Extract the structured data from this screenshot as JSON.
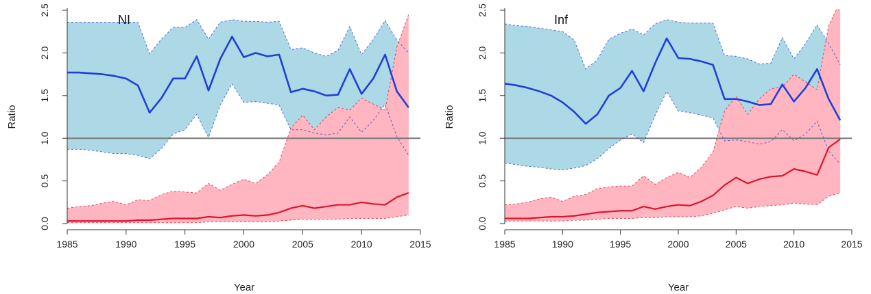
{
  "chart_data": [
    {
      "type": "line",
      "panel_label": "NI",
      "xlabel": "Year",
      "ylabel": "Ratio",
      "xlim": [
        1985,
        2015
      ],
      "ylim": [
        0,
        2.5
      ],
      "xticks": [
        1985,
        1990,
        1995,
        2000,
        2005,
        2010,
        2015
      ],
      "yticks": [
        0.0,
        0.5,
        1.0,
        1.5,
        2.0,
        2.5
      ],
      "ytick_labels": [
        "0.0",
        "0.5",
        "1.0",
        "1.5",
        "2.0",
        "2.5"
      ],
      "reference_line": 1.0,
      "x": [
        1985,
        1986,
        1987,
        1988,
        1989,
        1990,
        1991,
        1992,
        1993,
        1994,
        1995,
        1996,
        1997,
        1998,
        1999,
        2000,
        2001,
        2002,
        2003,
        2004,
        2005,
        2006,
        2007,
        2008,
        2009,
        2010,
        2011,
        2012,
        2013,
        2014
      ],
      "series": [
        {
          "color": "#1f3fd6",
          "band_color": "#add8e6",
          "values": [
            1.77,
            1.77,
            1.76,
            1.75,
            1.73,
            1.7,
            1.62,
            1.3,
            1.47,
            1.7,
            1.7,
            1.96,
            1.56,
            1.93,
            2.19,
            1.95,
            2.0,
            1.96,
            1.98,
            1.54,
            1.58,
            1.55,
            1.5,
            1.51,
            1.81,
            1.52,
            1.7,
            1.98,
            1.55,
            1.36
          ],
          "upper": [
            2.36,
            2.36,
            2.36,
            2.36,
            2.36,
            2.36,
            2.36,
            1.99,
            2.16,
            2.3,
            2.3,
            2.39,
            2.16,
            2.36,
            2.39,
            2.37,
            2.37,
            2.36,
            2.37,
            2.04,
            2.06,
            2.0,
            1.96,
            2.03,
            2.31,
            1.98,
            2.16,
            2.38,
            2.15,
            2.0
          ],
          "lower": [
            0.87,
            0.87,
            0.86,
            0.84,
            0.82,
            0.82,
            0.8,
            0.76,
            0.88,
            1.05,
            1.1,
            1.28,
            1.01,
            1.39,
            1.64,
            1.42,
            1.43,
            1.41,
            1.39,
            1.1,
            1.1,
            1.06,
            1.04,
            1.06,
            1.25,
            1.07,
            1.21,
            1.4,
            1.02,
            0.8
          ]
        },
        {
          "color": "#e0132a",
          "band_color": "#ffb6c1",
          "values": [
            0.03,
            0.03,
            0.03,
            0.03,
            0.03,
            0.03,
            0.04,
            0.04,
            0.05,
            0.06,
            0.06,
            0.06,
            0.08,
            0.07,
            0.09,
            0.1,
            0.09,
            0.1,
            0.13,
            0.18,
            0.21,
            0.18,
            0.2,
            0.22,
            0.22,
            0.25,
            0.23,
            0.22,
            0.31,
            0.36
          ],
          "upper": [
            0.18,
            0.2,
            0.21,
            0.24,
            0.26,
            0.22,
            0.28,
            0.27,
            0.34,
            0.38,
            0.37,
            0.36,
            0.47,
            0.39,
            0.46,
            0.52,
            0.47,
            0.57,
            0.72,
            1.12,
            1.27,
            1.1,
            1.25,
            1.36,
            1.33,
            1.47,
            1.4,
            1.33,
            2.07,
            2.45
          ],
          "lower": [
            0.01,
            0.01,
            0.01,
            0.01,
            0.01,
            0.01,
            0.01,
            0.01,
            0.01,
            0.01,
            0.01,
            0.01,
            0.02,
            0.02,
            0.02,
            0.02,
            0.02,
            0.02,
            0.03,
            0.04,
            0.05,
            0.05,
            0.05,
            0.05,
            0.06,
            0.06,
            0.06,
            0.06,
            0.08,
            0.1
          ]
        }
      ]
    },
    {
      "type": "line",
      "panel_label": "Inf",
      "xlabel": "Year",
      "ylabel": "Ratio",
      "xlim": [
        1985,
        2015
      ],
      "ylim": [
        0,
        2.5
      ],
      "xticks": [
        1985,
        1990,
        1995,
        2000,
        2005,
        2010,
        2015
      ],
      "yticks": [
        0.0,
        0.5,
        1.0,
        1.5,
        2.0,
        2.5
      ],
      "ytick_labels": [
        "0.0",
        "0.5",
        "1.0",
        "1.5",
        "2.0",
        "2.5"
      ],
      "reference_line": 1.0,
      "x": [
        1985,
        1986,
        1987,
        1988,
        1989,
        1990,
        1991,
        1992,
        1993,
        1994,
        1995,
        1996,
        1997,
        1998,
        1999,
        2000,
        2001,
        2002,
        2003,
        2004,
        2005,
        2006,
        2007,
        2008,
        2009,
        2010,
        2011,
        2012,
        2013,
        2014
      ],
      "series": [
        {
          "color": "#1f3fd6",
          "band_color": "#add8e6",
          "values": [
            1.64,
            1.62,
            1.59,
            1.55,
            1.5,
            1.42,
            1.31,
            1.17,
            1.28,
            1.5,
            1.59,
            1.79,
            1.55,
            1.88,
            2.17,
            1.94,
            1.93,
            1.9,
            1.86,
            1.46,
            1.46,
            1.43,
            1.39,
            1.4,
            1.63,
            1.43,
            1.59,
            1.81,
            1.46,
            1.21
          ],
          "upper": [
            2.34,
            2.32,
            2.31,
            2.29,
            2.27,
            2.25,
            2.15,
            1.81,
            1.92,
            2.16,
            2.23,
            2.28,
            2.21,
            2.34,
            2.39,
            2.36,
            2.35,
            2.35,
            2.35,
            1.97,
            1.96,
            1.93,
            1.87,
            1.88,
            2.18,
            1.93,
            2.11,
            2.33,
            2.11,
            1.86
          ],
          "lower": [
            0.71,
            0.69,
            0.67,
            0.66,
            0.64,
            0.63,
            0.65,
            0.68,
            0.76,
            0.88,
            0.98,
            1.05,
            0.95,
            1.27,
            1.55,
            1.32,
            1.3,
            1.27,
            1.24,
            0.97,
            0.98,
            0.96,
            0.93,
            0.96,
            1.1,
            0.97,
            1.05,
            1.2,
            0.85,
            0.7
          ]
        },
        {
          "color": "#e0132a",
          "band_color": "#ffb6c1",
          "values": [
            0.06,
            0.06,
            0.06,
            0.07,
            0.08,
            0.08,
            0.09,
            0.11,
            0.13,
            0.14,
            0.15,
            0.15,
            0.2,
            0.17,
            0.2,
            0.22,
            0.21,
            0.26,
            0.33,
            0.45,
            0.54,
            0.47,
            0.52,
            0.55,
            0.56,
            0.64,
            0.61,
            0.57,
            0.89,
            0.99
          ],
          "upper": [
            0.22,
            0.23,
            0.25,
            0.29,
            0.31,
            0.26,
            0.32,
            0.34,
            0.41,
            0.43,
            0.44,
            0.44,
            0.56,
            0.46,
            0.54,
            0.6,
            0.54,
            0.66,
            0.84,
            1.32,
            1.49,
            1.28,
            1.46,
            1.58,
            1.6,
            1.75,
            1.66,
            1.57,
            2.32,
            2.6
          ],
          "lower": [
            0.03,
            0.03,
            0.03,
            0.03,
            0.03,
            0.03,
            0.04,
            0.04,
            0.05,
            0.06,
            0.06,
            0.06,
            0.07,
            0.07,
            0.08,
            0.08,
            0.08,
            0.09,
            0.12,
            0.16,
            0.2,
            0.18,
            0.2,
            0.21,
            0.22,
            0.24,
            0.23,
            0.22,
            0.32,
            0.36
          ]
        }
      ]
    }
  ]
}
